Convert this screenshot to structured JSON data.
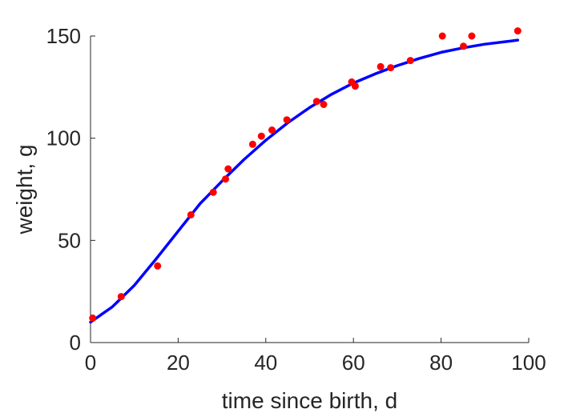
{
  "chart_data": {
    "type": "scatter",
    "title": "",
    "xlabel": "time since birth, d",
    "ylabel": "weight, g",
    "xlim": [
      0,
      100
    ],
    "ylim": [
      0,
      150
    ],
    "xticks": [
      "0",
      "20",
      "40",
      "60",
      "80",
      "100"
    ],
    "yticks": [
      "0",
      "50",
      "100",
      "150"
    ],
    "grid": false,
    "legend": "none",
    "colors": {
      "points": "#ff0000",
      "fit_line": "#0000ff",
      "axes": "#262626"
    },
    "series": [
      {
        "kind": "points",
        "x": [
          0.5,
          7,
          15.3,
          22.9,
          28,
          30.8,
          31.4,
          37,
          39,
          41.4,
          44.8,
          51.6,
          53.2,
          59.6,
          60.4,
          66.2,
          68.5,
          73,
          80.3,
          85.1,
          87,
          97.5
        ],
        "y": [
          12,
          22.5,
          37.5,
          62.5,
          73.5,
          80,
          85,
          97,
          101,
          104,
          109,
          118,
          116.5,
          127.5,
          125.5,
          135,
          134.5,
          138,
          150,
          145,
          150,
          152.5
        ]
      },
      {
        "kind": "line",
        "x": [
          0,
          5,
          10,
          15,
          20,
          25,
          30,
          35,
          40,
          45,
          50,
          55,
          60,
          65,
          70,
          75,
          80,
          85,
          90,
          95,
          97.5
        ],
        "y": [
          10,
          17.5,
          28,
          41,
          54.5,
          68,
          79,
          89.5,
          99,
          107.5,
          115,
          121.5,
          127,
          131.5,
          135.5,
          139,
          142,
          144.2,
          146,
          147.3,
          148
        ]
      }
    ]
  }
}
